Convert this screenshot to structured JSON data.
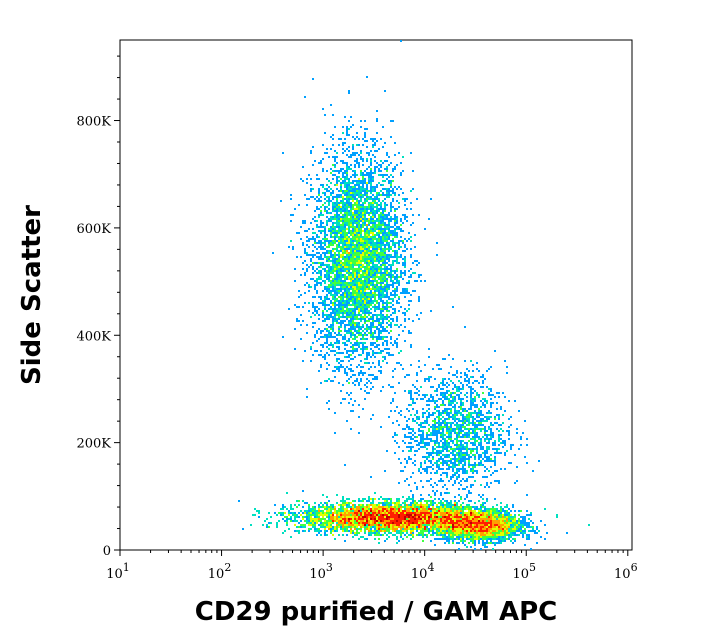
{
  "chart_data": {
    "type": "scatter",
    "title": "",
    "xlabel": "CD29 purified / GAM APC",
    "ylabel": "Side Scatter",
    "x_scale": "log",
    "xlim": [
      10,
      1100000
    ],
    "ylim": [
      0,
      950000
    ],
    "x_ticks": [
      {
        "value": 10,
        "base": "10",
        "exp": "1"
      },
      {
        "value": 100,
        "base": "10",
        "exp": "2"
      },
      {
        "value": 1000,
        "base": "10",
        "exp": "3"
      },
      {
        "value": 10000,
        "base": "10",
        "exp": "4"
      },
      {
        "value": 100000,
        "base": "10",
        "exp": "5"
      },
      {
        "value": 1000000,
        "base": "10",
        "exp": "6"
      }
    ],
    "y_ticks": [
      {
        "value": 0,
        "label": "0"
      },
      {
        "value": 200000,
        "label": "200K"
      },
      {
        "value": 400000,
        "label": "400K"
      },
      {
        "value": 600000,
        "label": "600K"
      },
      {
        "value": 800000,
        "label": "800K"
      }
    ],
    "grid": false,
    "legend": "none",
    "density_colors": [
      "#0000ff",
      "#00a0ff",
      "#00e0c0",
      "#40ff40",
      "#e0ff00",
      "#ffa000",
      "#ff2000",
      "#c00000"
    ],
    "populations": [
      {
        "x_center": 2200,
        "y_center": 540000,
        "x_spread_decades": 0.22,
        "y_spread": 95000,
        "count": 6000
      },
      {
        "x_center": 20000,
        "y_center": 220000,
        "x_spread_decades": 0.25,
        "y_spread": 55000,
        "count": 1800
      },
      {
        "x_center": 5000,
        "y_center": 60000,
        "x_spread_decades": 0.45,
        "y_spread": 14000,
        "count": 9000
      },
      {
        "x_center": 35000,
        "y_center": 45000,
        "x_spread_decades": 0.2,
        "y_spread": 14000,
        "count": 3000
      }
    ]
  }
}
